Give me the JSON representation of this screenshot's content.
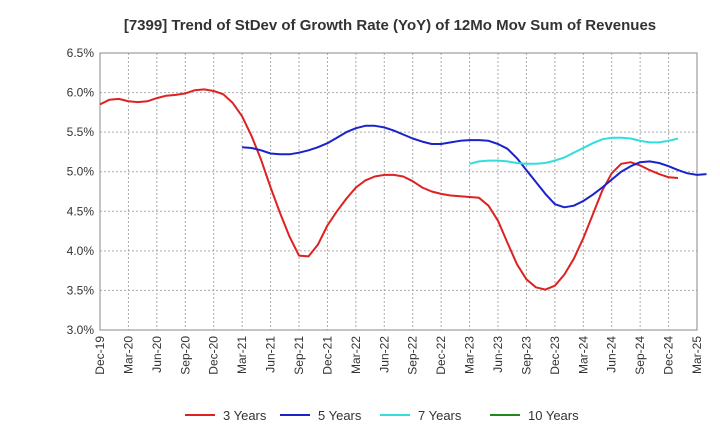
{
  "chart_data": {
    "type": "line",
    "title": "[7399]  Trend of StDev of Growth Rate (YoY) of 12Mo Mov Sum of Revenues",
    "xlabel": "",
    "ylabel": "",
    "ylim": [
      3.0,
      6.5
    ],
    "y_ticks": [
      "3.0%",
      "3.5%",
      "4.0%",
      "4.5%",
      "5.0%",
      "5.5%",
      "6.0%",
      "6.5%"
    ],
    "x_ticks": [
      "Dec-19",
      "Mar-20",
      "Jun-20",
      "Sep-20",
      "Dec-20",
      "Mar-21",
      "Jun-21",
      "Sep-21",
      "Dec-21",
      "Mar-22",
      "Jun-22",
      "Sep-22",
      "Dec-22",
      "Mar-23",
      "Jun-23",
      "Sep-23",
      "Dec-23",
      "Mar-24",
      "Jun-24",
      "Sep-24",
      "Dec-24",
      "Mar-25"
    ],
    "grid": true,
    "series": [
      {
        "name": "3 Years",
        "color": "#dd2222",
        "start_index": 0,
        "values": [
          5.85,
          5.91,
          5.92,
          5.89,
          5.88,
          5.89,
          5.93,
          5.96,
          5.97,
          5.99,
          6.03,
          6.04,
          6.02,
          5.98,
          5.87,
          5.7,
          5.45,
          5.15,
          4.8,
          4.48,
          4.18,
          3.94,
          3.93,
          4.08,
          4.32,
          4.5,
          4.66,
          4.8,
          4.89,
          4.94,
          4.96,
          4.96,
          4.94,
          4.88,
          4.8,
          4.75,
          4.72,
          4.7,
          4.69,
          4.68,
          4.67,
          4.57,
          4.38,
          4.1,
          3.83,
          3.64,
          3.54,
          3.51,
          3.56,
          3.7,
          3.9,
          4.16,
          4.46,
          4.76,
          4.98,
          5.1,
          5.12,
          5.08,
          5.02,
          4.97,
          4.93,
          4.92
        ]
      },
      {
        "name": "5 Years",
        "color": "#1a22cc",
        "start_index": 15,
        "values": [
          5.31,
          5.3,
          5.27,
          5.23,
          5.22,
          5.22,
          5.24,
          5.27,
          5.31,
          5.36,
          5.43,
          5.5,
          5.55,
          5.58,
          5.58,
          5.56,
          5.52,
          5.47,
          5.42,
          5.38,
          5.35,
          5.35,
          5.37,
          5.39,
          5.4,
          5.4,
          5.39,
          5.35,
          5.29,
          5.17,
          5.02,
          4.87,
          4.72,
          4.59,
          4.55,
          4.57,
          4.63,
          4.71,
          4.8,
          4.9,
          5.0,
          5.07,
          5.12,
          5.13,
          5.11,
          5.07,
          5.02,
          4.98,
          4.96,
          4.97
        ]
      },
      {
        "name": "7 Years",
        "color": "#33dddd",
        "start_index": 39,
        "values": [
          5.1,
          5.13,
          5.14,
          5.14,
          5.13,
          5.11,
          5.1,
          5.1,
          5.11,
          5.14,
          5.18,
          5.24,
          5.3,
          5.36,
          5.41,
          5.43,
          5.43,
          5.42,
          5.39,
          5.37,
          5.37,
          5.39,
          5.42
        ]
      },
      {
        "name": "10 Years",
        "color": "#228822",
        "start_index": 0,
        "values": []
      }
    ]
  }
}
